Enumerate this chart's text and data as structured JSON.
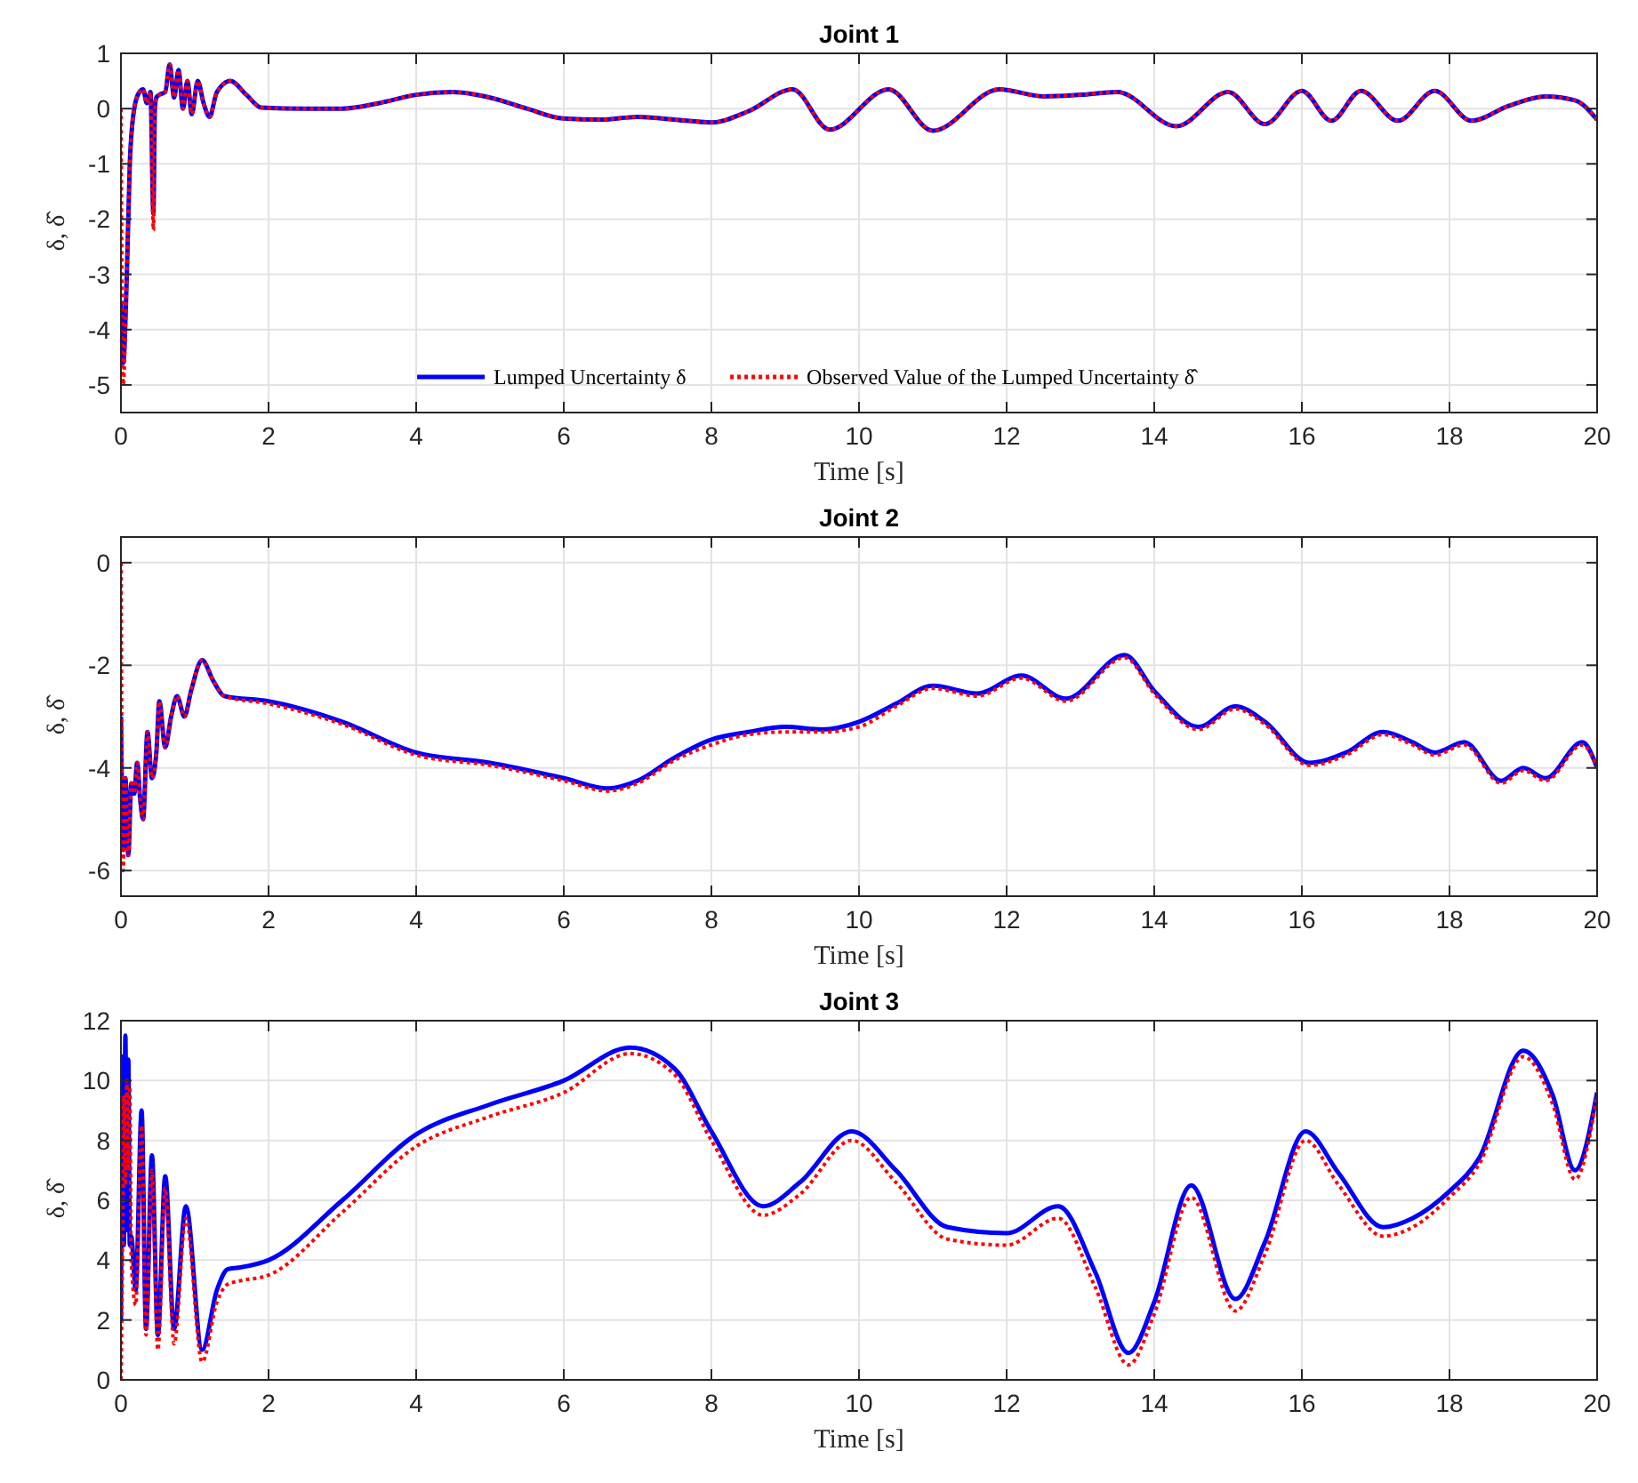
{
  "chart_data": [
    {
      "type": "line",
      "title": "Joint 1",
      "xlabel": "Time [s]",
      "ylabel": "δ, δ̂",
      "xlim": [
        0,
        20
      ],
      "xticks": [
        0,
        2,
        4,
        6,
        8,
        10,
        12,
        14,
        16,
        18,
        20
      ],
      "ylim": [
        -5.5,
        1
      ],
      "yticks": [
        -5,
        -4,
        -3,
        -2,
        -1,
        0,
        1
      ],
      "grid": true,
      "legend": "bottom",
      "series": [
        {
          "name": "Lumped Uncertainty δ",
          "color": "#0000ff",
          "line_style": "solid",
          "x": [
            0,
            0.03,
            0.08,
            0.12,
            0.18,
            0.25,
            0.3,
            0.35,
            0.4,
            0.44,
            0.46,
            0.48,
            0.52,
            0.6,
            0.66,
            0.72,
            0.78,
            0.84,
            0.9,
            0.96,
            1.04,
            1.12,
            1.2,
            1.3,
            1.48,
            1.7,
            1.9,
            2.5,
            3,
            3.5,
            4,
            4.5,
            5,
            5.5,
            6,
            6.5,
            7,
            7.5,
            8,
            8.5,
            9.1,
            9.6,
            10.4,
            11.0,
            11.9,
            12.5,
            13.0,
            13.5,
            14.3,
            15.0,
            15.5,
            16.0,
            16.4,
            16.8,
            17.3,
            17.8,
            18.3,
            18.8,
            19.3,
            19.7,
            20
          ],
          "values": [
            -3.5,
            -4.6,
            -3,
            -1,
            0,
            0.3,
            0.35,
            0.1,
            0.3,
            -1.9,
            0,
            0.2,
            0.25,
            0.3,
            0.8,
            0.2,
            0.7,
            0,
            0.5,
            -0.1,
            0.5,
            0.1,
            -0.15,
            0.3,
            0.5,
            0.25,
            0.02,
            0,
            0,
            0.1,
            0.25,
            0.3,
            0.2,
            0,
            -0.18,
            -0.2,
            -0.15,
            -0.2,
            -0.25,
            -0.05,
            0.35,
            -0.38,
            0.35,
            -0.4,
            0.35,
            0.22,
            0.25,
            0.3,
            -0.32,
            0.3,
            -0.28,
            0.32,
            -0.22,
            0.32,
            -0.22,
            0.32,
            -0.22,
            0.05,
            0.22,
            0.15,
            -0.2
          ]
        },
        {
          "name": "Observed Value of the Lumped Uncertainty δ̂",
          "color": "#ff0000",
          "line_style": "dotted",
          "x": [
            0,
            0.03,
            0.08,
            0.12,
            0.18,
            0.25,
            0.3,
            0.35,
            0.4,
            0.44,
            0.46,
            0.48,
            0.52,
            0.6,
            0.66,
            0.72,
            0.78,
            0.84,
            0.9,
            0.96,
            1.04,
            1.12,
            1.2,
            1.3,
            1.48,
            1.7,
            1.9,
            2.5,
            3,
            3.5,
            4,
            4.5,
            5,
            5.5,
            6,
            6.5,
            7,
            7.5,
            8,
            8.5,
            9.1,
            9.6,
            10.4,
            11.0,
            11.9,
            12.5,
            13.0,
            13.5,
            14.3,
            15.0,
            15.5,
            16.0,
            16.4,
            16.8,
            17.3,
            17.8,
            18.3,
            18.8,
            19.3,
            19.7,
            20
          ],
          "values": [
            0,
            -5,
            -3,
            -1,
            0,
            0.3,
            0.35,
            0.1,
            0.3,
            -2.2,
            0,
            0.2,
            0.25,
            0.3,
            0.8,
            0.2,
            0.7,
            0,
            0.5,
            -0.1,
            0.5,
            0.1,
            -0.15,
            0.3,
            0.5,
            0.25,
            0.02,
            0,
            0,
            0.1,
            0.25,
            0.3,
            0.2,
            0,
            -0.18,
            -0.2,
            -0.15,
            -0.2,
            -0.25,
            -0.05,
            0.35,
            -0.38,
            0.35,
            -0.4,
            0.35,
            0.22,
            0.25,
            0.3,
            -0.32,
            0.3,
            -0.28,
            0.32,
            -0.22,
            0.32,
            -0.22,
            0.32,
            -0.22,
            0.05,
            0.22,
            0.15,
            -0.2
          ]
        }
      ]
    },
    {
      "type": "line",
      "title": "Joint 2",
      "xlabel": "Time [s]",
      "ylabel": "δ, δ̂",
      "xlim": [
        0,
        20
      ],
      "xticks": [
        0,
        2,
        4,
        6,
        8,
        10,
        12,
        14,
        16,
        18,
        20
      ],
      "ylim": [
        -6.5,
        0.5
      ],
      "yticks": [
        -6,
        -4,
        -2,
        0
      ],
      "grid": true,
      "series": [
        {
          "color": "#0000ff",
          "line_style": "solid",
          "x": [
            0,
            0.03,
            0.06,
            0.1,
            0.14,
            0.18,
            0.22,
            0.26,
            0.3,
            0.36,
            0.42,
            0.48,
            0.52,
            0.6,
            0.68,
            0.76,
            0.86,
            0.95,
            1.1,
            1.25,
            1.4,
            2,
            3,
            4,
            5,
            6,
            6.6,
            7,
            7.5,
            8,
            8.5,
            9,
            9.5,
            10,
            10.5,
            11,
            11.6,
            12.2,
            12.8,
            13.6,
            14.0,
            14.6,
            15.1,
            15.5,
            16.1,
            16.6,
            17.1,
            17.5,
            17.8,
            18.2,
            18.7,
            19.0,
            19.3,
            19.8,
            20
          ],
          "values": [
            -3,
            -5.6,
            -4.2,
            -5.7,
            -4.3,
            -4.5,
            -3.9,
            -4.6,
            -5,
            -3.3,
            -4.2,
            -3.7,
            -2.7,
            -3.6,
            -3.0,
            -2.6,
            -3.0,
            -2.5,
            -1.9,
            -2.3,
            -2.6,
            -2.7,
            -3.1,
            -3.7,
            -3.9,
            -4.2,
            -4.4,
            -4.25,
            -3.8,
            -3.45,
            -3.3,
            -3.2,
            -3.25,
            -3.1,
            -2.75,
            -2.4,
            -2.55,
            -2.2,
            -2.65,
            -1.8,
            -2.5,
            -3.2,
            -2.8,
            -3.1,
            -3.9,
            -3.7,
            -3.3,
            -3.5,
            -3.7,
            -3.5,
            -4.25,
            -4.0,
            -4.2,
            -3.5,
            -4.0
          ]
        },
        {
          "color": "#ff0000",
          "line_style": "dotted",
          "x": [
            0,
            0.03,
            0.06,
            0.1,
            0.14,
            0.18,
            0.22,
            0.26,
            0.3,
            0.36,
            0.42,
            0.48,
            0.52,
            0.6,
            0.68,
            0.76,
            0.86,
            0.95,
            1.1,
            1.25,
            1.4,
            2,
            3,
            4,
            5,
            6,
            6.6,
            7,
            7.5,
            8,
            8.5,
            9,
            9.5,
            10,
            10.5,
            11,
            11.6,
            12.2,
            12.8,
            13.6,
            14.0,
            14.6,
            15.1,
            15.5,
            16.1,
            16.6,
            17.1,
            17.5,
            17.8,
            18.2,
            18.7,
            19.0,
            19.3,
            19.8,
            20
          ],
          "values": [
            0,
            -6,
            -4.2,
            -5.7,
            -4.3,
            -4.5,
            -3.9,
            -4.6,
            -5,
            -3.3,
            -4.2,
            -3.7,
            -2.7,
            -3.6,
            -3.0,
            -2.6,
            -3.0,
            -2.5,
            -1.9,
            -2.3,
            -2.6,
            -2.75,
            -3.15,
            -3.75,
            -3.95,
            -4.25,
            -4.45,
            -4.3,
            -3.85,
            -3.55,
            -3.35,
            -3.3,
            -3.3,
            -3.2,
            -2.8,
            -2.45,
            -2.6,
            -2.25,
            -2.7,
            -1.85,
            -2.55,
            -3.25,
            -2.85,
            -3.15,
            -3.95,
            -3.75,
            -3.35,
            -3.55,
            -3.75,
            -3.55,
            -4.3,
            -4.05,
            -4.25,
            -3.55,
            -4.0
          ]
        }
      ]
    },
    {
      "type": "line",
      "title": "Joint 3",
      "xlabel": "Time [s]",
      "ylabel": "δ, δ̂",
      "xlim": [
        0,
        20
      ],
      "xticks": [
        0,
        2,
        4,
        6,
        8,
        10,
        12,
        14,
        16,
        18,
        20
      ],
      "ylim": [
        0,
        12
      ],
      "yticks": [
        0,
        2,
        4,
        6,
        8,
        10,
        12
      ],
      "grid": true,
      "series": [
        {
          "color": "#0000ff",
          "line_style": "solid",
          "x": [
            0,
            0.02,
            0.04,
            0.06,
            0.08,
            0.1,
            0.12,
            0.14,
            0.2,
            0.28,
            0.34,
            0.42,
            0.5,
            0.6,
            0.72,
            0.88,
            1.1,
            1.3,
            1.45,
            1.6,
            2,
            3,
            4,
            5,
            6,
            6.9,
            7.5,
            8,
            8.7,
            9.2,
            9.9,
            10.5,
            11.2,
            12,
            12.7,
            13.2,
            13.65,
            14.0,
            14.5,
            15.1,
            15.5,
            16.05,
            16.5,
            17.1,
            17.5,
            18.0,
            18.4,
            19.0,
            19.4,
            19.7,
            20
          ],
          "values": [
            2,
            10.8,
            4.5,
            11.5,
            5,
            10.7,
            4.5,
            4.8,
            3.0,
            9.0,
            1.7,
            7.5,
            1.5,
            6.8,
            1.7,
            5.8,
            1.0,
            3.0,
            3.7,
            3.75,
            4.0,
            6.0,
            8.2,
            9.2,
            10.0,
            11.1,
            10.4,
            8.3,
            5.8,
            6.6,
            8.3,
            7.0,
            5.1,
            4.9,
            5.8,
            3.6,
            0.9,
            2.6,
            6.5,
            2.7,
            4.6,
            8.3,
            6.9,
            5.1,
            5.4,
            6.3,
            7.4,
            11.0,
            9.5,
            7.0,
            9.6
          ]
        },
        {
          "color": "#ff0000",
          "line_style": "dotted",
          "x": [
            0,
            0.02,
            0.04,
            0.06,
            0.08,
            0.1,
            0.12,
            0.14,
            0.2,
            0.28,
            0.34,
            0.42,
            0.5,
            0.6,
            0.72,
            0.88,
            1.1,
            1.3,
            1.45,
            1.6,
            2,
            3,
            4,
            5,
            6,
            6.9,
            7.5,
            8,
            8.7,
            9.2,
            9.9,
            10.5,
            11.2,
            12,
            12.7,
            13.2,
            13.65,
            14.0,
            14.5,
            15.1,
            15.5,
            16.05,
            16.5,
            17.1,
            17.5,
            18.0,
            18.4,
            19.0,
            19.4,
            19.7,
            20
          ],
          "values": [
            0,
            4,
            9.5,
            6.5,
            10,
            7,
            9.8,
            4,
            2.5,
            8.5,
            1.5,
            7.0,
            1.0,
            6.4,
            1.2,
            5.4,
            0.6,
            2.6,
            3.2,
            3.3,
            3.5,
            5.6,
            7.8,
            8.8,
            9.6,
            10.9,
            10.2,
            8.0,
            5.5,
            6.2,
            8.0,
            6.6,
            4.7,
            4.5,
            5.4,
            3.1,
            0.5,
            2.2,
            6.1,
            2.3,
            4.2,
            8.0,
            6.5,
            4.8,
            5.1,
            6.1,
            7.2,
            10.8,
            9.2,
            6.7,
            9.5
          ]
        }
      ]
    }
  ]
}
